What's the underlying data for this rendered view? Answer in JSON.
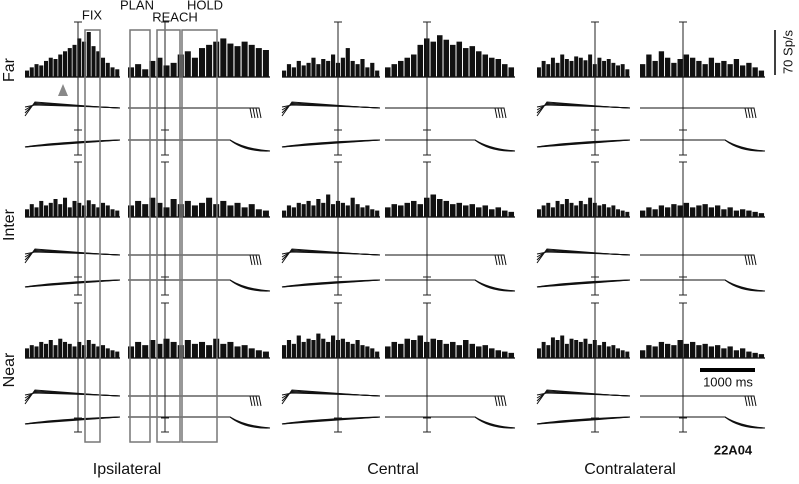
{
  "epochs": [
    "FIX",
    "PLAN",
    "REACH",
    "HOLD"
  ],
  "rows": [
    "Far",
    "Inter",
    "Near"
  ],
  "columns": [
    "Ipsilateral",
    "Central",
    "Contralateral"
  ],
  "rate_scale": {
    "value": 70,
    "label": "70 Sp/s"
  },
  "time_scale": {
    "value": 1000,
    "label": "1000 ms"
  },
  "cell_id": "22A04",
  "histograms": [
    [
      [
        [
          10,
          15,
          20,
          18,
          25,
          30,
          28,
          35,
          40,
          45,
          50,
          60,
          55,
          70,
          48,
          40,
          30,
          22,
          15,
          12
        ],
        [
          15,
          20,
          12,
          25,
          30,
          18,
          22,
          35,
          40,
          30,
          45,
          50,
          55,
          60,
          52,
          48,
          55,
          50,
          45,
          42
        ]
      ],
      [
        [
          10,
          20,
          15,
          25,
          18,
          22,
          30,
          20,
          28,
          25,
          35,
          22,
          30,
          45,
          25,
          20,
          28,
          15,
          22,
          10
        ],
        [
          15,
          20,
          25,
          30,
          35,
          50,
          60,
          55,
          65,
          58,
          50,
          55,
          45,
          48,
          40,
          35,
          30,
          28,
          20,
          15
        ]
      ],
      [
        [
          15,
          25,
          20,
          30,
          22,
          35,
          28,
          25,
          32,
          30,
          26,
          35,
          20,
          30,
          25,
          28,
          22,
          18,
          20,
          12
        ],
        [
          20,
          35,
          25,
          40,
          30,
          22,
          28,
          35,
          30,
          25,
          20,
          30,
          22,
          25,
          20,
          28,
          18,
          22,
          15,
          10
        ]
      ]
    ],
    [
      [
        [
          12,
          20,
          15,
          25,
          18,
          22,
          28,
          20,
          30,
          15,
          25,
          22,
          18,
          26,
          20,
          15,
          22,
          18,
          12,
          10
        ],
        [
          18,
          25,
          20,
          30,
          22,
          15,
          28,
          20,
          25,
          18,
          22,
          30,
          20,
          25,
          18,
          22,
          15,
          20,
          12,
          10
        ]
      ],
      [
        [
          10,
          18,
          15,
          22,
          20,
          25,
          18,
          28,
          22,
          35,
          20,
          25,
          22,
          18,
          30,
          20,
          15,
          18,
          12,
          10
        ],
        [
          15,
          20,
          18,
          22,
          25,
          20,
          30,
          35,
          28,
          25,
          20,
          22,
          18,
          20,
          15,
          18,
          12,
          15,
          10,
          8
        ]
      ],
      [
        [
          12,
          18,
          22,
          15,
          25,
          20,
          28,
          22,
          18,
          25,
          20,
          30,
          22,
          18,
          20,
          15,
          18,
          12,
          10,
          8
        ],
        [
          10,
          15,
          12,
          18,
          15,
          20,
          18,
          22,
          15,
          18,
          20,
          15,
          18,
          12,
          15,
          10,
          12,
          10,
          8,
          6
        ]
      ]
    ],
    [
      [
        [
          15,
          20,
          18,
          25,
          22,
          28,
          20,
          30,
          25,
          22,
          18,
          25,
          20,
          28,
          22,
          18,
          20,
          15,
          12,
          10
        ],
        [
          18,
          25,
          20,
          28,
          22,
          30,
          25,
          20,
          28,
          22,
          25,
          20,
          30,
          22,
          25,
          18,
          20,
          15,
          12,
          10
        ]
      ],
      [
        [
          20,
          28,
          22,
          35,
          25,
          30,
          28,
          38,
          30,
          25,
          35,
          28,
          30,
          25,
          22,
          28,
          20,
          18,
          15,
          10
        ],
        [
          18,
          25,
          22,
          30,
          28,
          35,
          25,
          30,
          28,
          22,
          25,
          20,
          28,
          22,
          18,
          20,
          15,
          12,
          10,
          8
        ]
      ],
      [
        [
          15,
          25,
          20,
          32,
          28,
          35,
          22,
          30,
          28,
          25,
          30,
          22,
          28,
          20,
          25,
          18,
          20,
          15,
          12,
          10
        ],
        [
          12,
          20,
          18,
          25,
          22,
          20,
          28,
          22,
          25,
          20,
          22,
          18,
          20,
          15,
          18,
          12,
          15,
          10,
          8,
          6
        ]
      ]
    ]
  ]
}
